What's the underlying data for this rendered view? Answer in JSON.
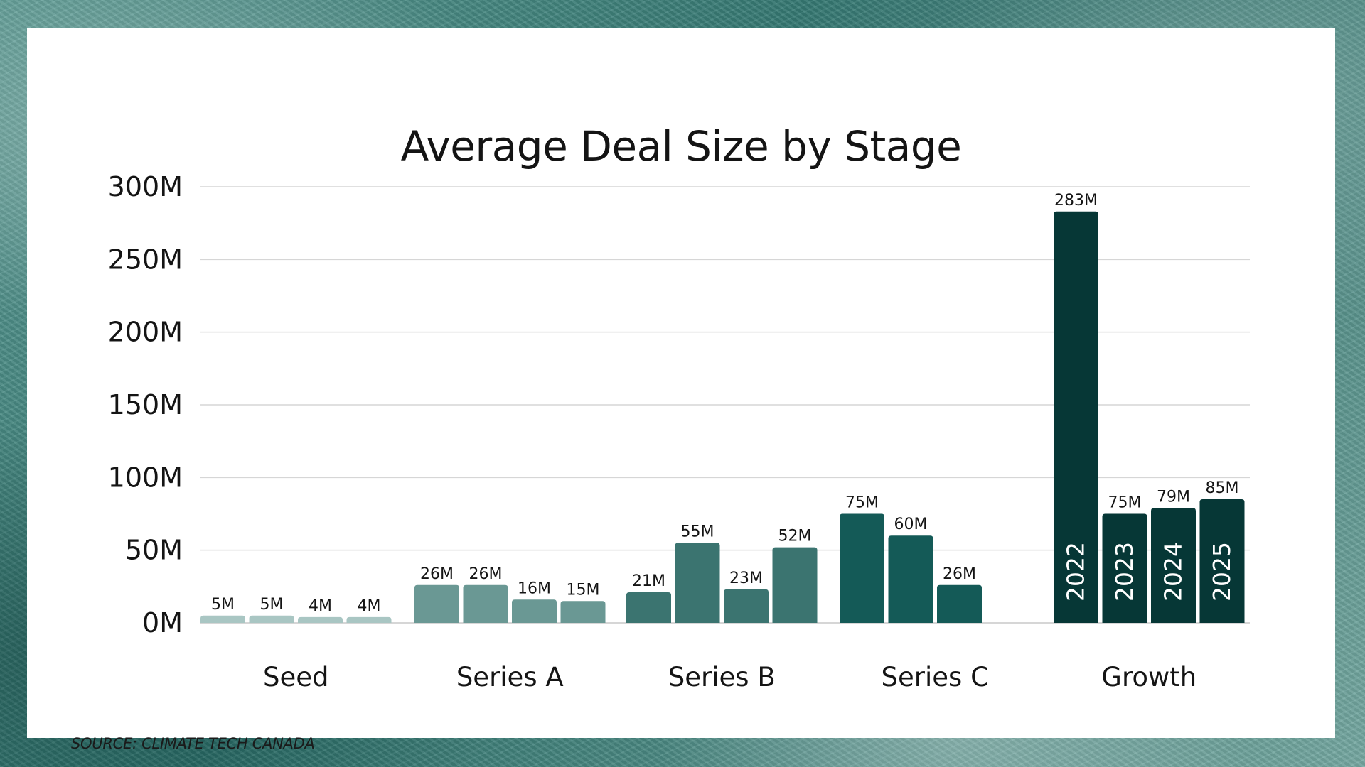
{
  "chart_data": {
    "type": "bar",
    "title": "Average Deal Size by Stage",
    "source": "SOURCE: CLIMATE TECH CANADA",
    "xlabel": "",
    "ylabel": "",
    "ylim": [
      0,
      300
    ],
    "y_ticks": [
      {
        "value": 0,
        "label": "0M"
      },
      {
        "value": 50,
        "label": "50M"
      },
      {
        "value": 100,
        "label": "100M"
      },
      {
        "value": 150,
        "label": "150M"
      },
      {
        "value": 200,
        "label": "200M"
      },
      {
        "value": 250,
        "label": "250M"
      },
      {
        "value": 300,
        "label": "300M"
      }
    ],
    "grid": true,
    "legend": "none",
    "series_labels": [
      "2022",
      "2023",
      "2024",
      "2025"
    ],
    "groups": [
      {
        "category": "Seed",
        "color": "#a9c6c3",
        "bars": [
          {
            "value": 5,
            "label": "5M"
          },
          {
            "value": 5,
            "label": "5M"
          },
          {
            "value": 4,
            "label": "4M"
          },
          {
            "value": 4,
            "label": "4M"
          }
        ]
      },
      {
        "category": "Series A",
        "color": "#6a9894",
        "bars": [
          {
            "value": 26,
            "label": "26M"
          },
          {
            "value": 26,
            "label": "26M"
          },
          {
            "value": 16,
            "label": "16M"
          },
          {
            "value": 15,
            "label": "15M"
          }
        ]
      },
      {
        "category": "Series B",
        "color": "#3b7470",
        "bars": [
          {
            "value": 21,
            "label": "21M"
          },
          {
            "value": 55,
            "label": "55M"
          },
          {
            "value": 23,
            "label": "23M"
          },
          {
            "value": 52,
            "label": "52M"
          }
        ]
      },
      {
        "category": "Series C",
        "color": "#145a57",
        "bars": [
          {
            "value": 75,
            "label": "75M"
          },
          {
            "value": 60,
            "label": "60M"
          },
          {
            "value": 26,
            "label": "26M"
          },
          null
        ]
      },
      {
        "category": "Growth",
        "color": "#063736",
        "show_year_labels": true,
        "bars": [
          {
            "value": 283,
            "label": "283M"
          },
          {
            "value": 75,
            "label": "75M"
          },
          {
            "value": 79,
            "label": "79M"
          },
          {
            "value": 85,
            "label": "85M"
          }
        ]
      }
    ]
  }
}
